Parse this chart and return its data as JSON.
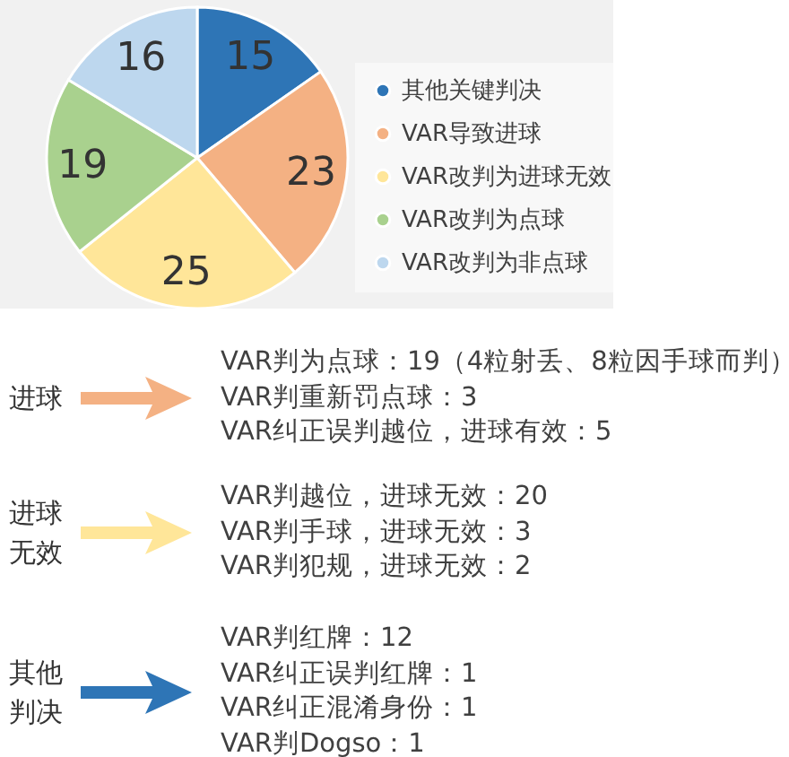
{
  "chart_data": [
    {
      "type": "pie",
      "categories": [
        "其他关键判决",
        "VAR导致进球",
        "VAR改判为进球无效",
        "VAR改判为点球",
        "VAR改判为非点球"
      ],
      "values": [
        15,
        23,
        25,
        19,
        16
      ],
      "colors": [
        "#2e75b6",
        "#f4b183",
        "#ffe699",
        "#a9d18e",
        "#bdd7ee"
      ],
      "data_labels": true,
      "legend": "right"
    },
    {
      "type": "other",
      "annotations": [
        "进球",
        "VAR判为点球：19（4粒射丢、8粒因手球而判）",
        "VAR判重新罚点球：3",
        "VAR纠正误判越位，进球有效：5"
      ]
    },
    {
      "type": "other",
      "annotations": [
        "进球无效",
        "VAR判越位，进球无效：20",
        "VAR判手球，进球无效：3",
        "VAR判犯规，进球无效：2"
      ]
    },
    {
      "type": "other",
      "annotations": [
        "其他判决",
        "VAR判红牌：12",
        "VAR纠正误判红牌：1",
        "VAR纠正混淆身份：1",
        "VAR判Dogso：1"
      ]
    }
  ]
}
